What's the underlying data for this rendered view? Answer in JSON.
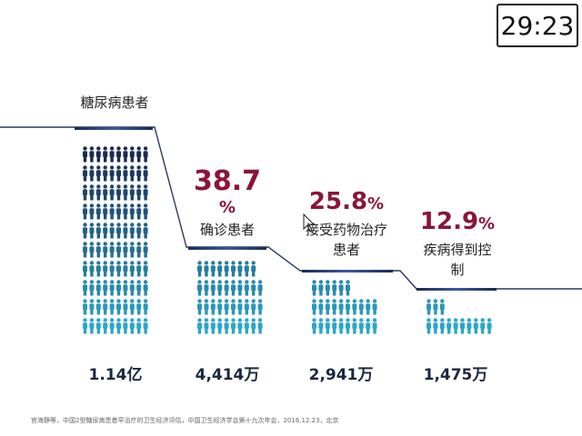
{
  "timer": "29:23",
  "categories": [
    {
      "label": "糖尿病患者",
      "percent": "",
      "percent_unit": "",
      "description": [],
      "total": "1.14亿",
      "fraction": 1.0
    },
    {
      "label": "",
      "percent": "38.7",
      "percent_unit": "%",
      "description": [
        "确诊患者"
      ],
      "total": "4,414万",
      "fraction": 0.387
    },
    {
      "label": "",
      "percent": "25.8",
      "percent_unit": "%",
      "description": [
        "接受药物治疗",
        "患者"
      ],
      "total": "2,941万",
      "fraction": 0.258
    },
    {
      "label": "",
      "percent": "12.9",
      "percent_unit": "%",
      "description": [
        "疾病得到控",
        "制"
      ],
      "total": "1,475万",
      "fraction": 0.129
    }
  ],
  "source": "官海静等，中国2型糖尿病患者早治疗的卫生经济评估，中国卫生经济学会第十九次年会，2016.12.23，北京",
  "colors": {
    "navy": "#1b2a4e",
    "blue": "#3a6fb5",
    "cyan": "#2ba6c8",
    "accent": "#8a1538"
  }
}
